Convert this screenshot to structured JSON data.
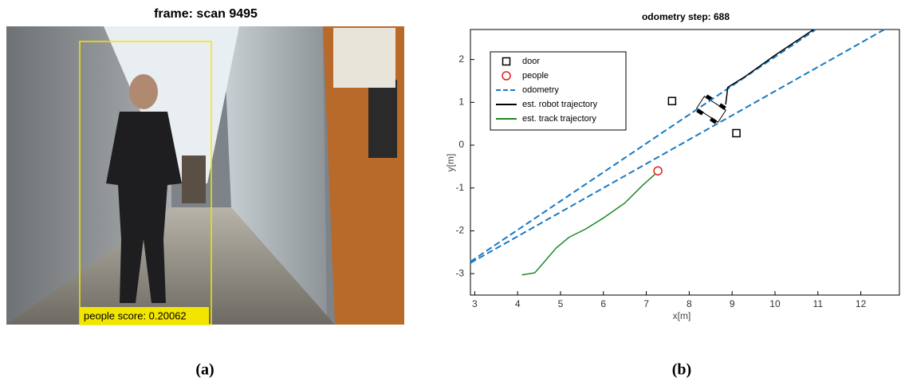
{
  "panel_a": {
    "title": "frame: scan 9495",
    "label": "people score: 0.20062"
  },
  "captions": [
    "(a)",
    "(b)"
  ],
  "chart_data": {
    "type": "line",
    "title": "odometry step: 688",
    "x_label": "x[m]",
    "y_label": "y[m]",
    "xlim": [
      2.9,
      12.9
    ],
    "ylim": [
      -3.5,
      2.7
    ],
    "xticks": [
      3,
      4,
      5,
      6,
      7,
      8,
      9,
      10,
      11,
      12
    ],
    "yticks": [
      -3,
      -2,
      -1,
      0,
      1,
      2
    ],
    "legend": "upper left",
    "series": [
      {
        "name": "door",
        "color": "#000000",
        "marker": "square",
        "x": [
          7.6,
          9.1
        ],
        "values": [
          1.03,
          0.28
        ]
      },
      {
        "name": "people",
        "color": "#e02020",
        "marker": "circle",
        "x": [
          7.27
        ],
        "values": [
          -0.6
        ]
      },
      {
        "name": "odometry",
        "color": "#1a7abf",
        "dash": true,
        "x": [
          2.9,
          10.95,
          null,
          2.9,
          12.55
        ],
        "values": [
          -2.72,
          2.7,
          null,
          -2.75,
          2.7
        ]
      },
      {
        "name": "est. robot trajectory",
        "color": "#000000",
        "x": [
          8.85,
          8.9,
          9.3,
          10.0,
          10.9
        ],
        "values": [
          0.95,
          1.35,
          1.6,
          2.1,
          2.7
        ]
      },
      {
        "name": "est. track trajectory",
        "color": "#1a8a2a",
        "x": [
          4.1,
          4.4,
          4.6,
          4.9,
          5.2,
          5.6,
          6.0,
          6.5,
          6.9,
          7.2
        ],
        "values": [
          -3.03,
          -2.98,
          -2.75,
          -2.4,
          -2.15,
          -1.95,
          -1.7,
          -1.35,
          -0.95,
          -0.68
        ]
      }
    ]
  }
}
